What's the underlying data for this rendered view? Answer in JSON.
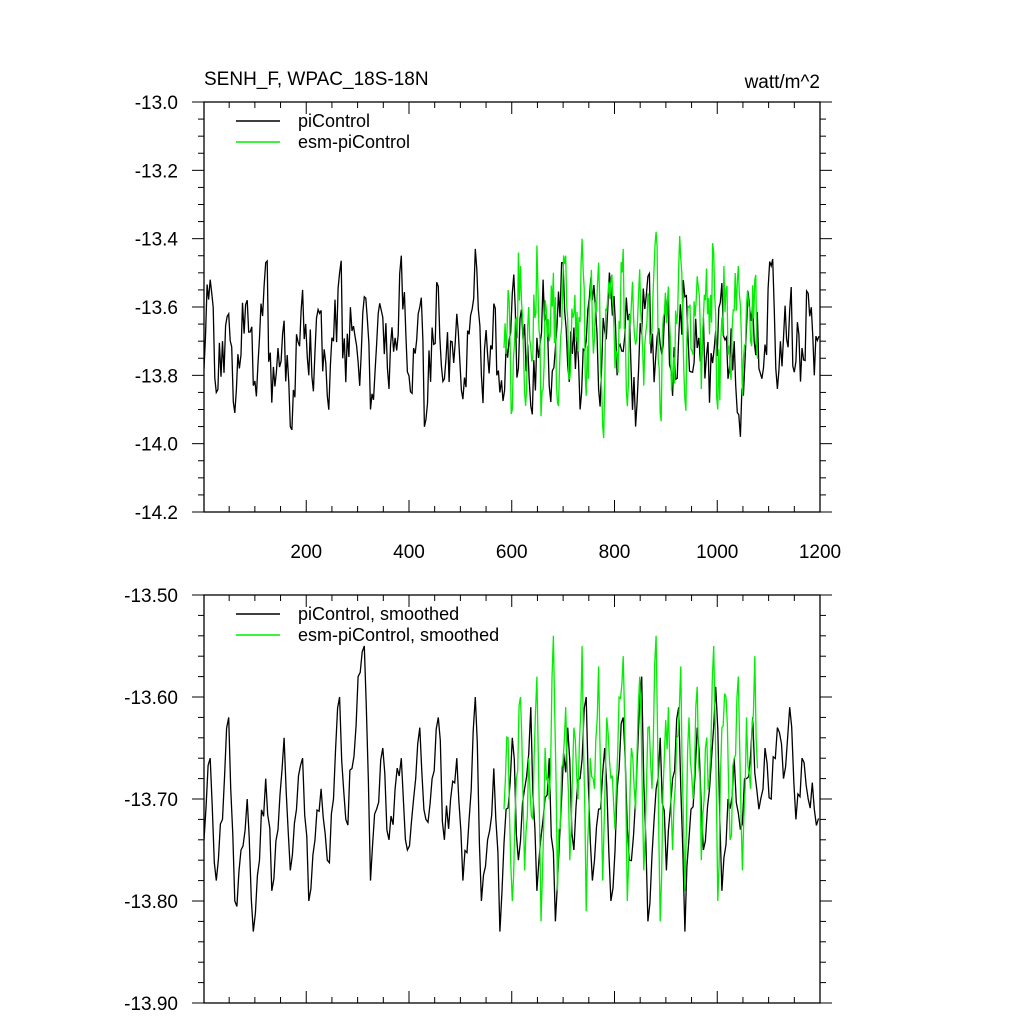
{
  "figure": {
    "title": "SENH_F, WPAC_18S-18N",
    "units": "watt/m^2"
  },
  "chart_data": [
    {
      "type": "line",
      "title": "SENH_F, WPAC_18S-18N",
      "units_label": "watt/m^2",
      "xlim": [
        1,
        1200
      ],
      "ylim": [
        -14.2,
        -13.0
      ],
      "x_ticks": [
        200,
        400,
        600,
        800,
        1000,
        1200
      ],
      "x_tick_labels": [
        "200",
        "400",
        "600",
        "800",
        "1000",
        "1200"
      ],
      "y_ticks": [
        -13.0,
        -13.2,
        -13.4,
        -13.6,
        -13.8,
        -14.0,
        -14.2
      ],
      "y_tick_labels": [
        "-13.0",
        "-13.2",
        "-13.4",
        "-13.6",
        "-13.8",
        "-14.0",
        "-14.2"
      ],
      "legend_position": "top-left",
      "grid": false,
      "series": [
        {
          "name": "piControl",
          "color": "#000000",
          "x_range": [
            1,
            1200
          ],
          "samples_per_point": 12,
          "x_step": 12,
          "mean": -13.7,
          "values": [
            -13.78,
            -13.52,
            -13.85,
            -13.7,
            -13.62,
            -13.91,
            -13.74,
            -13.58,
            -13.83,
            -13.69,
            -13.47,
            -13.88,
            -13.72,
            -13.64,
            -13.95,
            -13.68,
            -13.55,
            -13.8,
            -13.73,
            -13.61,
            -13.86,
            -13.7,
            -13.5,
            -13.82,
            -13.67,
            -13.76,
            -13.57,
            -13.9,
            -13.71,
            -13.63,
            -13.84,
            -13.69,
            -13.45,
            -13.79,
            -13.72,
            -13.6,
            -13.93,
            -13.66,
            -13.54,
            -13.81,
            -13.7,
            -13.62,
            -13.87,
            -13.68,
            -13.43,
            -13.8,
            -13.74,
            -13.59,
            -13.85,
            -13.71,
            -13.56,
            -13.78,
            -13.65,
            -13.89,
            -13.69,
            -13.52,
            -13.83,
            -13.72,
            -13.47,
            -13.77,
            -13.66,
            -13.9,
            -13.7,
            -13.58,
            -13.84,
            -13.67,
            -13.55,
            -13.8,
            -13.73,
            -13.62,
            -13.95,
            -13.68,
            -13.51,
            -13.82,
            -13.71,
            -13.6,
            -13.86,
            -13.69,
            -13.57,
            -13.79,
            -13.72,
            -13.63,
            -13.88,
            -13.67,
            -13.53,
            -13.81,
            -13.7,
            -13.98,
            -13.66,
            -13.59,
            -13.78,
            -13.71,
            -13.48,
            -13.84,
            -13.69,
            -13.61,
            -13.76,
            -13.72,
            -13.56,
            -13.8
          ]
        },
        {
          "name": "esm-piControl",
          "color": "#00ee00",
          "x_range": [
            585,
            1080
          ],
          "x_step": 8,
          "mean": -13.68,
          "values": [
            -13.72,
            -13.55,
            -13.9,
            -13.63,
            -13.48,
            -13.85,
            -13.6,
            -13.75,
            -13.42,
            -13.92,
            -13.58,
            -13.7,
            -13.5,
            -13.88,
            -13.66,
            -13.45,
            -13.81,
            -13.62,
            -13.73,
            -13.4,
            -13.86,
            -13.57,
            -13.69,
            -13.47,
            -13.95,
            -13.61,
            -13.52,
            -13.78,
            -13.64,
            -13.43,
            -13.89,
            -13.59,
            -13.71,
            -13.49,
            -13.83,
            -13.56,
            -13.67,
            -13.38,
            -13.91,
            -13.62,
            -13.54,
            -13.8,
            -13.65,
            -13.46,
            -13.87,
            -13.6,
            -13.74,
            -13.51,
            -13.84,
            -13.58,
            -13.68,
            -13.44,
            -13.9,
            -13.63,
            -13.55,
            -13.79,
            -13.61,
            -13.48,
            -13.86,
            -13.59,
            -13.7,
            -13.52,
            -13.82,
            -13.57
          ]
        }
      ]
    },
    {
      "type": "line",
      "xlim": [
        1,
        1200
      ],
      "ylim": [
        -13.9,
        -13.5
      ],
      "x_ticks": [
        200,
        400,
        600,
        800,
        1000,
        1200
      ],
      "x_tick_labels": [],
      "y_ticks": [
        -13.5,
        -13.6,
        -13.7,
        -13.8,
        -13.9
      ],
      "y_tick_labels": [
        "-13.50",
        "-13.60",
        "-13.70",
        "-13.80",
        "-13.90"
      ],
      "legend_position": "top-left",
      "grid": false,
      "series": [
        {
          "name": "piControl, smoothed",
          "color": "#000000",
          "x_range": [
            1,
            1200
          ],
          "x_step": 12,
          "values": [
            -13.74,
            -13.66,
            -13.78,
            -13.72,
            -13.62,
            -13.8,
            -13.75,
            -13.7,
            -13.83,
            -13.76,
            -13.68,
            -13.79,
            -13.73,
            -13.64,
            -13.77,
            -13.71,
            -13.66,
            -13.8,
            -13.74,
            -13.69,
            -13.76,
            -13.7,
            -13.6,
            -13.72,
            -13.67,
            -13.58,
            -13.55,
            -13.78,
            -13.71,
            -13.65,
            -13.74,
            -13.69,
            -13.66,
            -13.75,
            -13.7,
            -13.63,
            -13.72,
            -13.68,
            -13.62,
            -13.74,
            -13.7,
            -13.66,
            -13.78,
            -13.72,
            -13.6,
            -13.8,
            -13.74,
            -13.67,
            -13.83,
            -13.71,
            -13.64,
            -13.76,
            -13.69,
            -13.61,
            -13.79,
            -13.72,
            -13.66,
            -13.82,
            -13.7,
            -13.63,
            -13.75,
            -13.68,
            -13.6,
            -13.78,
            -13.71,
            -13.65,
            -13.8,
            -13.69,
            -13.62,
            -13.76,
            -13.7,
            -13.58,
            -13.82,
            -13.72,
            -13.64,
            -13.77,
            -13.68,
            -13.61,
            -13.83,
            -13.71,
            -13.63,
            -13.75,
            -13.69,
            -13.59,
            -13.79,
            -13.7,
            -13.66,
            -13.73,
            -13.68,
            -13.62,
            -13.71,
            -13.65,
            -13.7,
            -13.63,
            -13.68,
            -13.61,
            -13.72,
            -13.66,
            -13.7,
            -13.71
          ]
        },
        {
          "name": "esm-piControl, smoothed",
          "color": "#00ee00",
          "x_range": [
            585,
            1080
          ],
          "x_step": 8,
          "values": [
            -13.71,
            -13.64,
            -13.8,
            -13.68,
            -13.6,
            -13.77,
            -13.66,
            -13.72,
            -13.58,
            -13.82,
            -13.65,
            -13.7,
            -13.54,
            -13.79,
            -13.67,
            -13.61,
            -13.76,
            -13.63,
            -13.7,
            -13.55,
            -13.81,
            -13.66,
            -13.69,
            -13.57,
            -13.78,
            -13.62,
            -13.68,
            -13.73,
            -13.6,
            -13.56,
            -13.8,
            -13.65,
            -13.71,
            -13.58,
            -13.77,
            -13.63,
            -13.69,
            -13.54,
            -13.82,
            -13.66,
            -13.61,
            -13.75,
            -13.64,
            -13.57,
            -13.79,
            -13.62,
            -13.7,
            -13.59,
            -13.76,
            -13.65,
            -13.68,
            -13.55,
            -13.8,
            -13.63,
            -13.6,
            -13.74,
            -13.66,
            -13.58,
            -13.77,
            -13.62,
            -13.69,
            -13.56,
            -13.75,
            -13.64
          ]
        }
      ]
    }
  ]
}
